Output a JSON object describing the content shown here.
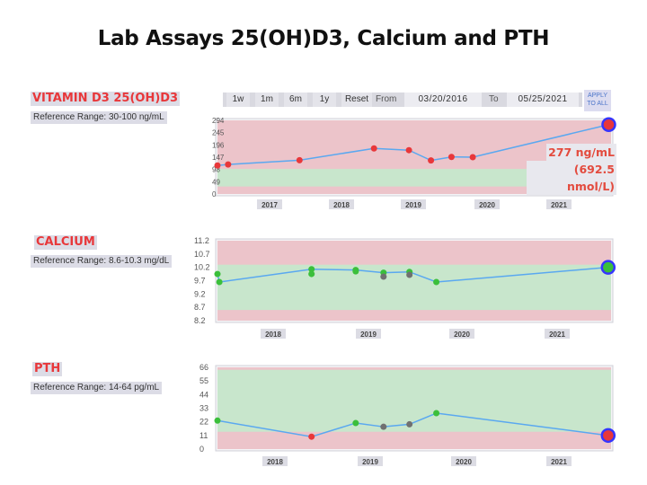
{
  "slide_title": "Lab Assays 25(OH)D3, Calcium and PTH",
  "toolbar": {
    "buttons": [
      "1w",
      "1m",
      "6m",
      "1y",
      "Reset"
    ],
    "from_label": "From",
    "from_date": "03/20/2016",
    "to_label": "To",
    "to_date": "05/25/2021",
    "apply_line1": "APPLY",
    "apply_line2": "TO ALL"
  },
  "vitd_callout": {
    "value": "277 ng/mL",
    "converted": "(692.5 nmol/L)"
  },
  "colors": {
    "normal_band": "#c8e6cc",
    "out_of_range_band": "#ecc4ca",
    "line": "#5aa8f0",
    "high": "#e8373a",
    "normal": "#3bbf3b",
    "neutral": "#707070",
    "latest_ring": "#3535ff"
  },
  "chart_data": [
    {
      "type": "line",
      "title": "VITAMIN D3 25(OH)D3",
      "reference_text": "Reference Range: 30-100 ng/mL",
      "reference_range": [
        30,
        100
      ],
      "unit": "ng/mL",
      "yticks": [
        "294",
        "245",
        "196",
        "147",
        "98",
        "49",
        "0"
      ],
      "ylim": [
        0,
        294
      ],
      "xticks": [
        "2017",
        "2018",
        "2019",
        "2020",
        "2021"
      ],
      "xlim": [
        2016.22,
        2021.4
      ],
      "points": [
        {
          "x": 2016.22,
          "y": 114,
          "status": "high"
        },
        {
          "x": 2016.36,
          "y": 118,
          "status": "high"
        },
        {
          "x": 2017.3,
          "y": 135,
          "status": "high"
        },
        {
          "x": 2018.28,
          "y": 182,
          "status": "high"
        },
        {
          "x": 2018.74,
          "y": 175,
          "status": "high"
        },
        {
          "x": 2019.03,
          "y": 134,
          "status": "high"
        },
        {
          "x": 2019.3,
          "y": 148,
          "status": "high"
        },
        {
          "x": 2019.58,
          "y": 147,
          "status": "high"
        },
        {
          "x": 2021.37,
          "y": 277,
          "status": "high",
          "latest": true
        }
      ]
    },
    {
      "type": "line",
      "title": "CALCIUM",
      "reference_text": "Reference Range: 8.6-10.3 mg/dL",
      "reference_range": [
        8.6,
        10.3
      ],
      "unit": "mg/dL",
      "yticks": [
        "11.2",
        "10.7",
        "10.2",
        "9.7",
        "9.2",
        "8.7",
        "8.2"
      ],
      "ylim": [
        8.2,
        11.2
      ],
      "xticks": [
        "2018",
        "2019",
        "2020",
        "2021"
      ],
      "xlim": [
        2017.3,
        2021.4
      ],
      "points": [
        {
          "x": 2017.3,
          "y": 9.95,
          "status": "normal"
        },
        {
          "x": 2017.32,
          "y": 9.65,
          "status": "normal"
        },
        {
          "x": 2018.28,
          "y": 10.13,
          "status": "normal"
        },
        {
          "x": 2018.28,
          "y": 9.95,
          "status": "normal"
        },
        {
          "x": 2018.74,
          "y": 10.1,
          "status": "normal"
        },
        {
          "x": 2018.74,
          "y": 10.05,
          "status": "normal"
        },
        {
          "x": 2019.03,
          "y": 10.0,
          "status": "normal"
        },
        {
          "x": 2019.03,
          "y": 9.85,
          "status": "neutral"
        },
        {
          "x": 2019.3,
          "y": 10.03,
          "status": "normal"
        },
        {
          "x": 2019.3,
          "y": 9.92,
          "status": "neutral"
        },
        {
          "x": 2019.58,
          "y": 9.65,
          "status": "normal"
        },
        {
          "x": 2021.37,
          "y": 10.2,
          "status": "normal",
          "latest": true
        }
      ]
    },
    {
      "type": "line",
      "title": "PTH",
      "reference_text": "Reference Range: 14-64 pg/mL",
      "reference_range": [
        14,
        64
      ],
      "unit": "pg/mL",
      "yticks": [
        "66",
        "55",
        "44",
        "33",
        "22",
        "11",
        "0"
      ],
      "ylim": [
        0,
        66
      ],
      "xticks": [
        "2018",
        "2019",
        "2020",
        "2021"
      ],
      "xlim": [
        2017.3,
        2021.4
      ],
      "points": [
        {
          "x": 2017.3,
          "y": 23,
          "status": "normal"
        },
        {
          "x": 2018.28,
          "y": 10,
          "status": "high"
        },
        {
          "x": 2018.74,
          "y": 21,
          "status": "normal"
        },
        {
          "x": 2019.03,
          "y": 18,
          "status": "neutral"
        },
        {
          "x": 2019.3,
          "y": 20,
          "status": "neutral"
        },
        {
          "x": 2019.58,
          "y": 29,
          "status": "normal"
        },
        {
          "x": 2021.37,
          "y": 11,
          "status": "high",
          "latest": true
        }
      ]
    }
  ]
}
